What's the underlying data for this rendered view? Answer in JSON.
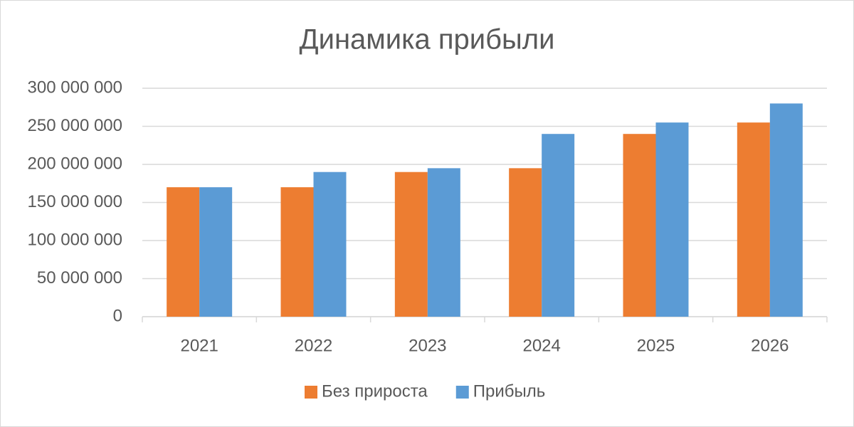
{
  "chart_data": {
    "type": "bar",
    "title": "Динамика прибыли",
    "categories": [
      "2021",
      "2022",
      "2023",
      "2024",
      "2025",
      "2026"
    ],
    "series": [
      {
        "name": "Без прироста",
        "color": "#ed7d31",
        "values": [
          170000000,
          170000000,
          190000000,
          195000000,
          240000000,
          255000000
        ]
      },
      {
        "name": "Прибыль",
        "color": "#5b9bd5",
        "values": [
          170000000,
          190000000,
          195000000,
          240000000,
          255000000,
          280000000
        ]
      }
    ],
    "ylim": [
      0,
      300000000
    ],
    "yticks": [
      0,
      {
        "value": 50000000,
        "label": "50 000 000"
      },
      {
        "value": 100000000,
        "label": "100 000 000"
      },
      {
        "value": 150000000,
        "label": "150 000 000"
      },
      {
        "value": 200000000,
        "label": "200 000 000"
      },
      {
        "value": 250000000,
        "label": "250 000 000"
      },
      {
        "value": 300000000,
        "label": "300 000 000"
      }
    ],
    "grid": true,
    "legend": "bottom"
  }
}
